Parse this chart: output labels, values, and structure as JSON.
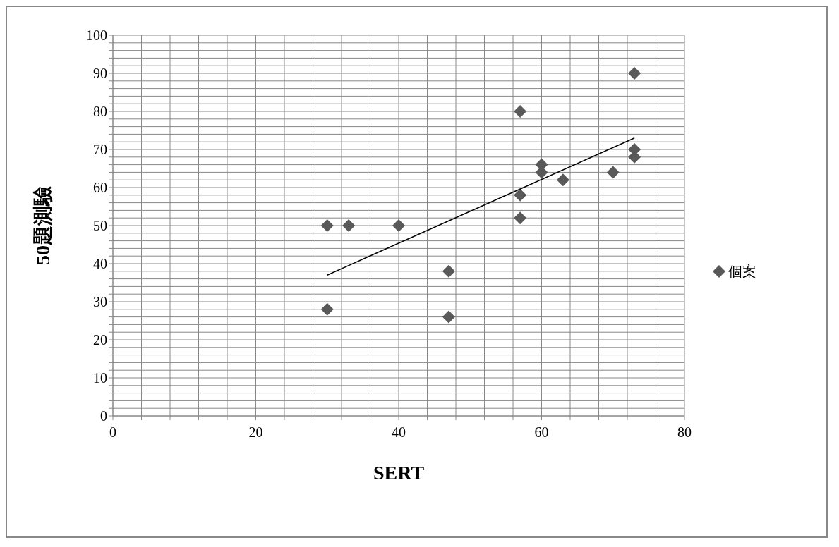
{
  "chart_data": {
    "type": "scatter",
    "xlabel": "SERT",
    "ylabel": "50題測驗",
    "series": [
      {
        "name": "個案",
        "color": "#595959",
        "marker": "diamond",
        "x": [
          30,
          30,
          33,
          40,
          47,
          47,
          57,
          57,
          57,
          60,
          60,
          63,
          70,
          73,
          73,
          73
        ],
        "values": [
          50,
          28,
          50,
          50,
          38,
          26,
          80,
          58,
          52,
          66,
          64,
          62,
          64,
          90,
          70,
          68
        ]
      },
      {
        "type": "line",
        "color": "#000000",
        "marker": "none",
        "line_style": "solid",
        "x": [
          30,
          73
        ],
        "values": [
          37,
          73
        ]
      }
    ],
    "xlim": [
      0,
      80
    ],
    "xticks": [
      0,
      {
        "value": 4,
        "label": null
      },
      {
        "value": 8,
        "label": null
      },
      {
        "value": 12,
        "label": null
      },
      {
        "value": 16,
        "label": null
      },
      20,
      {
        "value": 24,
        "label": null
      },
      {
        "value": 28,
        "label": null
      },
      {
        "value": 32,
        "label": null
      },
      {
        "value": 36,
        "label": null
      },
      40,
      {
        "value": 44,
        "label": null
      },
      {
        "value": 48,
        "label": null
      },
      {
        "value": 52,
        "label": null
      },
      {
        "value": 56,
        "label": null
      },
      60,
      {
        "value": 64,
        "label": null
      },
      {
        "value": 68,
        "label": null
      },
      {
        "value": 72,
        "label": null
      },
      {
        "value": 76,
        "label": null
      },
      80
    ],
    "ylim": [
      0,
      100
    ],
    "yticks": [
      0,
      {
        "value": 2,
        "label": null
      },
      {
        "value": 4,
        "label": null
      },
      {
        "value": 6,
        "label": null
      },
      {
        "value": 8,
        "label": null
      },
      10,
      {
        "value": 12,
        "label": null
      },
      {
        "value": 14,
        "label": null
      },
      {
        "value": 16,
        "label": null
      },
      {
        "value": 18,
        "label": null
      },
      20,
      {
        "value": 22,
        "label": null
      },
      {
        "value": 24,
        "label": null
      },
      {
        "value": 26,
        "label": null
      },
      {
        "value": 28,
        "label": null
      },
      30,
      {
        "value": 32,
        "label": null
      },
      {
        "value": 34,
        "label": null
      },
      {
        "value": 36,
        "label": null
      },
      {
        "value": 38,
        "label": null
      },
      40,
      {
        "value": 42,
        "label": null
      },
      {
        "value": 44,
        "label": null
      },
      {
        "value": 46,
        "label": null
      },
      {
        "value": 48,
        "label": null
      },
      50,
      {
        "value": 52,
        "label": null
      },
      {
        "value": 54,
        "label": null
      },
      {
        "value": 56,
        "label": null
      },
      {
        "value": 58,
        "label": null
      },
      60,
      {
        "value": 62,
        "label": null
      },
      {
        "value": 64,
        "label": null
      },
      {
        "value": 66,
        "label": null
      },
      {
        "value": 68,
        "label": null
      },
      70,
      {
        "value": 72,
        "label": null
      },
      {
        "value": 74,
        "label": null
      },
      {
        "value": 76,
        "label": null
      },
      {
        "value": 78,
        "label": null
      },
      80,
      {
        "value": 82,
        "label": null
      },
      {
        "value": 84,
        "label": null
      },
      {
        "value": 86,
        "label": null
      },
      {
        "value": 88,
        "label": null
      },
      90,
      {
        "value": 92,
        "label": null
      },
      {
        "value": 94,
        "label": null
      },
      {
        "value": 96,
        "label": null
      },
      {
        "value": 98,
        "label": null
      },
      100
    ],
    "grid": true,
    "legend": "right"
  }
}
